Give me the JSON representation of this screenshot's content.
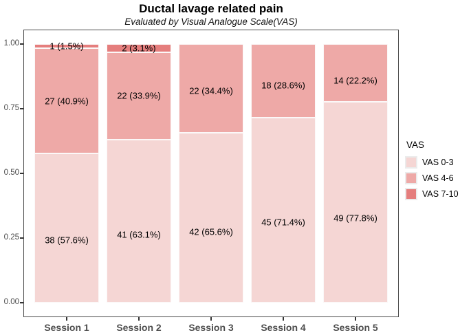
{
  "title": "Ductal lavage related pain",
  "subtitle": "Evaluated by Visual Analogue Scale(VAS)",
  "legend": {
    "title": "VAS",
    "entries": [
      {
        "label": "VAS 0-3",
        "color": "#F5D6D4"
      },
      {
        "label": "VAS 4-6",
        "color": "#EEA9A7"
      },
      {
        "label": "VAS 7-10",
        "color": "#E57E7D"
      }
    ]
  },
  "chart_data": {
    "type": "bar",
    "stacked": true,
    "normalized": "fill (proportion of patients per session)",
    "title": "Ductal lavage related pain",
    "subtitle": "Evaluated by Visual Analogue Scale(VAS)",
    "categories": [
      "Session 1",
      "Session 2",
      "Session 3",
      "Session 4",
      "Session 5"
    ],
    "series": [
      {
        "name": "VAS 0-3",
        "color": "#F5D6D4",
        "counts": [
          38,
          41,
          42,
          45,
          49
        ],
        "values": [
          0.5758,
          0.6308,
          0.6563,
          0.7143,
          0.7778
        ],
        "labels": [
          "38 (57.6%)",
          "41 (63.1%)",
          "42 (65.6%)",
          "45 (71.4%)",
          "49 (77.8%)"
        ]
      },
      {
        "name": "VAS 4-6",
        "color": "#EEA9A7",
        "counts": [
          27,
          22,
          22,
          18,
          14
        ],
        "values": [
          0.4091,
          0.3385,
          0.3437,
          0.2857,
          0.2222
        ],
        "labels": [
          "27 (40.9%)",
          "22 (33.9%)",
          "22 (34.4%)",
          "18 (28.6%)",
          "14 (22.2%)"
        ]
      },
      {
        "name": "VAS 7-10",
        "color": "#E57E7D",
        "counts": [
          1,
          2,
          0,
          0,
          0
        ],
        "values": [
          0.0152,
          0.0308,
          0,
          0,
          0
        ],
        "labels": [
          "1 (1.5%)",
          "2 (3.1%)",
          "",
          "",
          ""
        ]
      }
    ],
    "xlabel": "",
    "ylabel": "",
    "ylim": [
      0,
      1
    ],
    "yticks": [
      {
        "value": 0.0,
        "label": "0.00"
      },
      {
        "value": 0.25,
        "label": "0.25"
      },
      {
        "value": 0.5,
        "label": "0.50"
      },
      {
        "value": 0.75,
        "label": "0.75"
      },
      {
        "value": 1.0,
        "label": "1.00"
      }
    ],
    "grid": false,
    "legend_position": "right",
    "legend_title": "VAS"
  }
}
